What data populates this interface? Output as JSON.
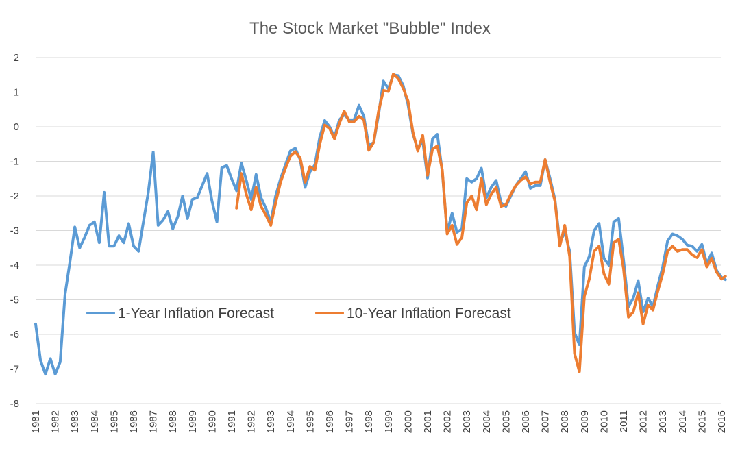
{
  "chart_data": {
    "type": "line",
    "title": "The Stock Market \"Bubble\" Index",
    "xlabel": "",
    "ylabel": "",
    "xlim": [
      1981,
      2016
    ],
    "ylim": [
      -8,
      2
    ],
    "y_ticks": [
      2,
      1,
      0,
      -1,
      -2,
      -3,
      -4,
      -5,
      -6,
      -7,
      -8
    ],
    "y_tick_labels": [
      "2",
      "1",
      "0",
      "-1",
      "-2",
      "-3",
      "-4",
      "-5",
      "-6",
      "-7",
      "-8"
    ],
    "x_ticks": [
      1981,
      1982,
      1983,
      1984,
      1985,
      1986,
      1987,
      1988,
      1989,
      1990,
      1991,
      1992,
      1993,
      1994,
      1995,
      1996,
      1997,
      1998,
      1999,
      2000,
      2001,
      2002,
      2003,
      2004,
      2005,
      2006,
      2007,
      2008,
      2009,
      2010,
      2011,
      2012,
      2013,
      2014,
      2015,
      2016
    ],
    "x_tick_labels": [
      "1981",
      "1982",
      "1983",
      "1984",
      "1985",
      "1986",
      "1987",
      "1988",
      "1989",
      "1990",
      "1991",
      "1992",
      "1993",
      "1994",
      "1995",
      "1996",
      "1997",
      "1998",
      "1999",
      "2000",
      "2001",
      "2002",
      "2003",
      "2004",
      "2005",
      "2006",
      "2007",
      "2008",
      "2009",
      "2010",
      "2011",
      "2012",
      "2013",
      "2014",
      "2015",
      "2016"
    ],
    "grid": true,
    "legend_position": "lower-left",
    "series": [
      {
        "name": "1-Year Inflation Forecast",
        "color": "#5b9bd5",
        "points": [
          [
            1981.0,
            -5.7
          ],
          [
            1981.25,
            -6.75
          ],
          [
            1981.5,
            -7.15
          ],
          [
            1981.75,
            -6.7
          ],
          [
            1982.0,
            -7.15
          ],
          [
            1982.25,
            -6.8
          ],
          [
            1982.5,
            -4.85
          ],
          [
            1982.75,
            -3.9
          ],
          [
            1983.0,
            -2.9
          ],
          [
            1983.25,
            -3.5
          ],
          [
            1983.5,
            -3.2
          ],
          [
            1983.75,
            -2.85
          ],
          [
            1984.0,
            -2.75
          ],
          [
            1984.25,
            -3.35
          ],
          [
            1984.5,
            -1.9
          ],
          [
            1984.75,
            -3.45
          ],
          [
            1985.0,
            -3.45
          ],
          [
            1985.25,
            -3.15
          ],
          [
            1985.5,
            -3.35
          ],
          [
            1985.75,
            -2.8
          ],
          [
            1986.0,
            -3.45
          ],
          [
            1986.25,
            -3.6
          ],
          [
            1986.5,
            -2.75
          ],
          [
            1986.75,
            -1.9
          ],
          [
            1987.0,
            -0.73
          ],
          [
            1987.25,
            -2.85
          ],
          [
            1987.5,
            -2.7
          ],
          [
            1987.75,
            -2.45
          ],
          [
            1988.0,
            -2.95
          ],
          [
            1988.25,
            -2.6
          ],
          [
            1988.5,
            -2.0
          ],
          [
            1988.75,
            -2.65
          ],
          [
            1989.0,
            -2.1
          ],
          [
            1989.25,
            -2.05
          ],
          [
            1989.5,
            -1.7
          ],
          [
            1989.75,
            -1.35
          ],
          [
            1990.0,
            -2.15
          ],
          [
            1990.25,
            -2.75
          ],
          [
            1990.5,
            -1.18
          ],
          [
            1990.75,
            -1.12
          ],
          [
            1991.0,
            -1.5
          ],
          [
            1991.25,
            -1.85
          ],
          [
            1991.5,
            -1.05
          ],
          [
            1991.75,
            -1.55
          ],
          [
            1992.0,
            -2.1
          ],
          [
            1992.25,
            -1.38
          ],
          [
            1992.5,
            -2.05
          ],
          [
            1992.75,
            -2.35
          ],
          [
            1993.0,
            -2.75
          ],
          [
            1993.25,
            -2.0
          ],
          [
            1993.5,
            -1.5
          ],
          [
            1993.75,
            -1.1
          ],
          [
            1994.0,
            -0.7
          ],
          [
            1994.25,
            -0.62
          ],
          [
            1994.5,
            -0.95
          ],
          [
            1994.75,
            -1.75
          ],
          [
            1995.0,
            -1.3
          ],
          [
            1995.25,
            -1.1
          ],
          [
            1995.5,
            -0.3
          ],
          [
            1995.75,
            0.18
          ],
          [
            1996.0,
            0.0
          ],
          [
            1996.25,
            -0.3
          ],
          [
            1996.5,
            0.2
          ],
          [
            1996.75,
            0.35
          ],
          [
            1997.0,
            0.2
          ],
          [
            1997.25,
            0.2
          ],
          [
            1997.5,
            0.62
          ],
          [
            1997.75,
            0.3
          ],
          [
            1998.0,
            -0.55
          ],
          [
            1998.25,
            -0.45
          ],
          [
            1998.5,
            0.35
          ],
          [
            1998.75,
            1.32
          ],
          [
            1999.0,
            1.1
          ],
          [
            1999.25,
            1.5
          ],
          [
            1999.5,
            1.48
          ],
          [
            1999.75,
            1.2
          ],
          [
            2000.0,
            0.65
          ],
          [
            2000.25,
            -0.2
          ],
          [
            2000.5,
            -0.65
          ],
          [
            2000.75,
            -0.4
          ],
          [
            2001.0,
            -1.48
          ],
          [
            2001.25,
            -0.35
          ],
          [
            2001.5,
            -0.22
          ],
          [
            2001.75,
            -1.3
          ],
          [
            2002.0,
            -3.05
          ],
          [
            2002.25,
            -2.5
          ],
          [
            2002.5,
            -3.05
          ],
          [
            2002.75,
            -2.95
          ],
          [
            2003.0,
            -1.5
          ],
          [
            2003.25,
            -1.6
          ],
          [
            2003.5,
            -1.5
          ],
          [
            2003.75,
            -1.2
          ],
          [
            2004.0,
            -2.05
          ],
          [
            2004.25,
            -1.75
          ],
          [
            2004.5,
            -1.55
          ],
          [
            2004.75,
            -2.2
          ],
          [
            2005.0,
            -2.3
          ],
          [
            2005.25,
            -2.0
          ],
          [
            2005.5,
            -1.7
          ],
          [
            2005.75,
            -1.5
          ],
          [
            2006.0,
            -1.3
          ],
          [
            2006.25,
            -1.78
          ],
          [
            2006.5,
            -1.7
          ],
          [
            2006.75,
            -1.7
          ],
          [
            2007.0,
            -0.95
          ],
          [
            2007.25,
            -1.5
          ],
          [
            2007.5,
            -2.1
          ],
          [
            2007.75,
            -3.35
          ],
          [
            2008.0,
            -3.05
          ],
          [
            2008.25,
            -3.6
          ],
          [
            2008.5,
            -5.95
          ],
          [
            2008.75,
            -6.3
          ],
          [
            2009.0,
            -4.05
          ],
          [
            2009.25,
            -3.75
          ],
          [
            2009.5,
            -3.0
          ],
          [
            2009.75,
            -2.8
          ],
          [
            2010.0,
            -3.8
          ],
          [
            2010.25,
            -4.0
          ],
          [
            2010.5,
            -2.75
          ],
          [
            2010.75,
            -2.65
          ],
          [
            2011.0,
            -3.85
          ],
          [
            2011.25,
            -5.2
          ],
          [
            2011.5,
            -4.95
          ],
          [
            2011.75,
            -4.45
          ],
          [
            2012.0,
            -5.35
          ],
          [
            2012.25,
            -4.95
          ],
          [
            2012.5,
            -5.2
          ],
          [
            2012.75,
            -4.6
          ],
          [
            2013.0,
            -4.05
          ],
          [
            2013.25,
            -3.3
          ],
          [
            2013.5,
            -3.1
          ],
          [
            2013.75,
            -3.15
          ],
          [
            2014.0,
            -3.25
          ],
          [
            2014.25,
            -3.42
          ],
          [
            2014.5,
            -3.45
          ],
          [
            2014.75,
            -3.6
          ],
          [
            2015.0,
            -3.4
          ],
          [
            2015.25,
            -3.95
          ],
          [
            2015.5,
            -3.65
          ],
          [
            2015.75,
            -4.15
          ],
          [
            2016.0,
            -4.35
          ],
          [
            2016.2,
            -4.42
          ]
        ]
      },
      {
        "name": "10-Year Inflation Forecast",
        "color": "#ed7d31",
        "points": [
          [
            1991.25,
            -2.35
          ],
          [
            1991.5,
            -1.35
          ],
          [
            1991.75,
            -1.95
          ],
          [
            1992.0,
            -2.4
          ],
          [
            1992.25,
            -1.75
          ],
          [
            1992.5,
            -2.3
          ],
          [
            1992.75,
            -2.55
          ],
          [
            1993.0,
            -2.85
          ],
          [
            1993.25,
            -2.2
          ],
          [
            1993.5,
            -1.6
          ],
          [
            1993.75,
            -1.2
          ],
          [
            1994.0,
            -0.85
          ],
          [
            1994.25,
            -0.72
          ],
          [
            1994.5,
            -0.9
          ],
          [
            1994.75,
            -1.6
          ],
          [
            1995.0,
            -1.15
          ],
          [
            1995.25,
            -1.25
          ],
          [
            1995.5,
            -0.5
          ],
          [
            1995.75,
            0.05
          ],
          [
            1996.0,
            -0.05
          ],
          [
            1996.25,
            -0.35
          ],
          [
            1996.5,
            0.1
          ],
          [
            1996.75,
            0.45
          ],
          [
            1997.0,
            0.15
          ],
          [
            1997.25,
            0.15
          ],
          [
            1997.5,
            0.3
          ],
          [
            1997.75,
            0.2
          ],
          [
            1998.0,
            -0.68
          ],
          [
            1998.25,
            -0.45
          ],
          [
            1998.5,
            0.45
          ],
          [
            1998.75,
            1.05
          ],
          [
            1999.0,
            1.02
          ],
          [
            1999.25,
            1.52
          ],
          [
            1999.5,
            1.4
          ],
          [
            1999.75,
            1.12
          ],
          [
            2000.0,
            0.75
          ],
          [
            2000.25,
            -0.15
          ],
          [
            2000.5,
            -0.7
          ],
          [
            2000.75,
            -0.25
          ],
          [
            2001.0,
            -1.4
          ],
          [
            2001.25,
            -0.65
          ],
          [
            2001.5,
            -0.55
          ],
          [
            2001.75,
            -1.25
          ],
          [
            2002.0,
            -3.1
          ],
          [
            2002.25,
            -2.85
          ],
          [
            2002.5,
            -3.4
          ],
          [
            2002.75,
            -3.2
          ],
          [
            2003.0,
            -2.2
          ],
          [
            2003.25,
            -2.0
          ],
          [
            2003.5,
            -2.4
          ],
          [
            2003.75,
            -1.5
          ],
          [
            2004.0,
            -2.25
          ],
          [
            2004.25,
            -1.95
          ],
          [
            2004.5,
            -1.75
          ],
          [
            2004.75,
            -2.3
          ],
          [
            2005.0,
            -2.25
          ],
          [
            2005.25,
            -1.95
          ],
          [
            2005.5,
            -1.7
          ],
          [
            2005.75,
            -1.55
          ],
          [
            2006.0,
            -1.45
          ],
          [
            2006.25,
            -1.65
          ],
          [
            2006.5,
            -1.6
          ],
          [
            2006.75,
            -1.6
          ],
          [
            2007.0,
            -0.95
          ],
          [
            2007.25,
            -1.6
          ],
          [
            2007.5,
            -2.15
          ],
          [
            2007.75,
            -3.45
          ],
          [
            2008.0,
            -2.85
          ],
          [
            2008.25,
            -3.75
          ],
          [
            2008.5,
            -6.55
          ],
          [
            2008.75,
            -7.08
          ],
          [
            2009.0,
            -4.9
          ],
          [
            2009.25,
            -4.4
          ],
          [
            2009.5,
            -3.6
          ],
          [
            2009.75,
            -3.45
          ],
          [
            2010.0,
            -4.25
          ],
          [
            2010.25,
            -4.55
          ],
          [
            2010.5,
            -3.35
          ],
          [
            2010.75,
            -3.25
          ],
          [
            2011.0,
            -4.1
          ],
          [
            2011.25,
            -5.5
          ],
          [
            2011.5,
            -5.35
          ],
          [
            2011.75,
            -4.8
          ],
          [
            2012.0,
            -5.7
          ],
          [
            2012.25,
            -5.15
          ],
          [
            2012.5,
            -5.3
          ],
          [
            2012.75,
            -4.75
          ],
          [
            2013.0,
            -4.25
          ],
          [
            2013.25,
            -3.6
          ],
          [
            2013.5,
            -3.45
          ],
          [
            2013.75,
            -3.6
          ],
          [
            2014.0,
            -3.55
          ],
          [
            2014.25,
            -3.55
          ],
          [
            2014.5,
            -3.7
          ],
          [
            2014.75,
            -3.78
          ],
          [
            2015.0,
            -3.55
          ],
          [
            2015.25,
            -4.05
          ],
          [
            2015.5,
            -3.8
          ],
          [
            2015.75,
            -4.2
          ],
          [
            2016.0,
            -4.4
          ],
          [
            2016.2,
            -4.32
          ]
        ]
      }
    ]
  }
}
